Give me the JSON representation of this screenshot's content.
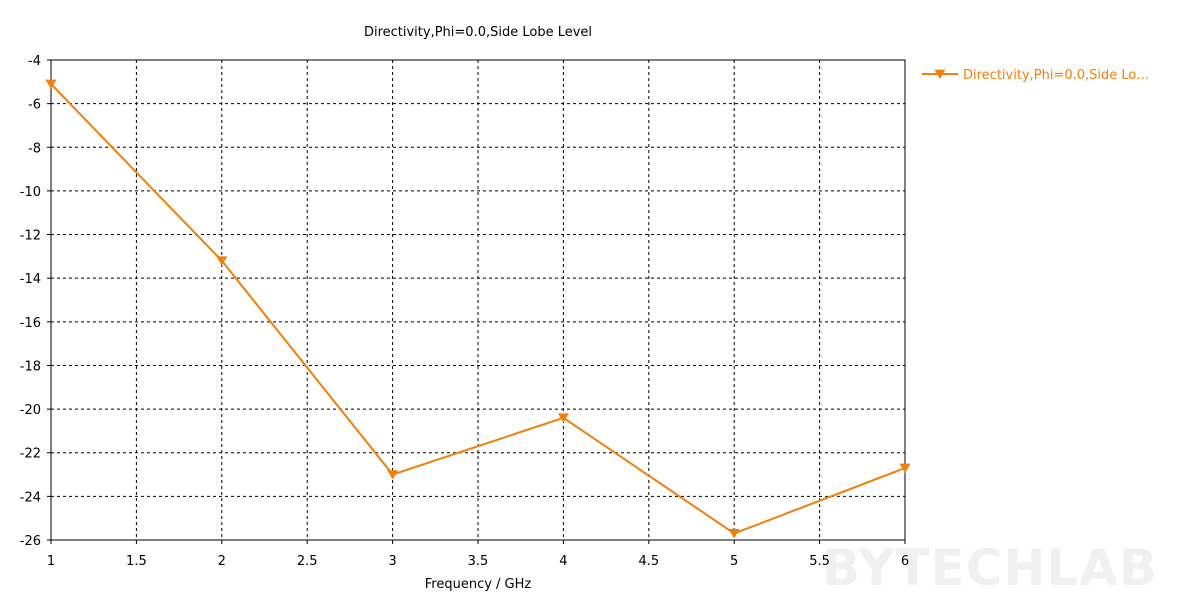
{
  "chart_data": {
    "type": "line",
    "title": "Directivity,Phi=0.0,Side Lobe Level",
    "xlabel": "Frequency / GHz",
    "ylabel": "",
    "xlim": [
      1,
      6
    ],
    "ylim": [
      -26,
      -4
    ],
    "xticks": [
      1,
      1.5,
      2,
      2.5,
      3,
      3.5,
      4,
      4.5,
      5,
      5.5,
      6
    ],
    "xtick_labels": [
      "1",
      "1.5",
      "2",
      "2.5",
      "3",
      "3.5",
      "4",
      "4.5",
      "5",
      "5.5",
      "6"
    ],
    "yticks": [
      -4,
      -6,
      -8,
      -10,
      -12,
      -14,
      -16,
      -18,
      -20,
      -22,
      -24,
      -26
    ],
    "ytick_labels": [
      "-4",
      "-6",
      "-8",
      "-10",
      "-12",
      "-14",
      "-16",
      "-18",
      "-20",
      "-22",
      "-24",
      "-26"
    ],
    "grid": true,
    "legend_position": "right",
    "series": [
      {
        "name": "Directivity,Phi=0.0,Side Lo…",
        "color": "#f0800c",
        "marker": "triangle-down",
        "x": [
          1,
          2,
          3,
          4,
          5,
          6
        ],
        "y": [
          -5.1,
          -13.2,
          -23.0,
          -20.4,
          -25.7,
          -22.7
        ]
      }
    ]
  },
  "watermark": "BYTECHLAB"
}
